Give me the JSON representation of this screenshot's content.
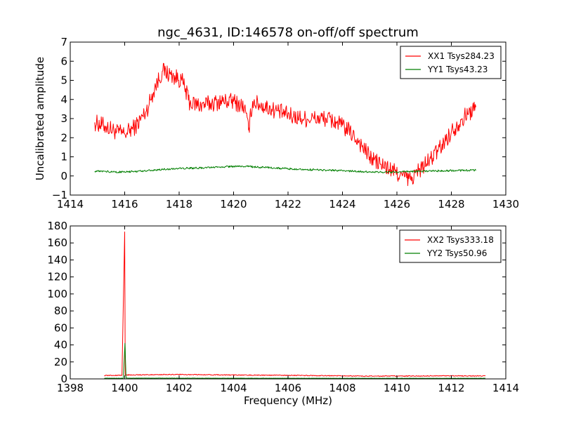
{
  "chart_data": [
    {
      "type": "line",
      "title": "ngc_4631, ID:146578 on-off/off spectrum",
      "xlabel": "",
      "ylabel": "Uncalibrated amplitude",
      "xlim": [
        1414,
        1430
      ],
      "ylim": [
        -1,
        7
      ],
      "xticks": [
        1414,
        1416,
        1418,
        1420,
        1422,
        1424,
        1426,
        1428,
        1430
      ],
      "yticks": [
        -1,
        0,
        1,
        2,
        3,
        4,
        5,
        6,
        7
      ],
      "xtick_labels": [
        "1414",
        "1416",
        "1418",
        "1420",
        "1422",
        "1424",
        "1426",
        "1428",
        "1430"
      ],
      "ytick_labels": [
        "−1",
        "0",
        "1",
        "2",
        "3",
        "4",
        "5",
        "6",
        "7"
      ],
      "legend_position": "top-right",
      "series": [
        {
          "name": "XX1 Tsys284.23",
          "color": "#ff0000",
          "noise": 0.45,
          "x": [
            1414.9,
            1415.3,
            1415.7,
            1416.0,
            1416.4,
            1416.8,
            1417.1,
            1417.4,
            1417.8,
            1418.1,
            1418.4,
            1418.8,
            1419.2,
            1419.6,
            1420.0,
            1420.4,
            1420.55,
            1420.7,
            1421.0,
            1421.4,
            1421.8,
            1422.2,
            1422.6,
            1423.0,
            1423.4,
            1423.8,
            1424.2,
            1424.6,
            1425.0,
            1425.4,
            1425.8,
            1426.2,
            1426.5,
            1426.8,
            1427.2,
            1427.6,
            1428.0,
            1428.4,
            1428.9
          ],
          "values": [
            2.8,
            2.6,
            2.3,
            2.2,
            2.6,
            3.4,
            4.6,
            5.5,
            5.2,
            5.0,
            3.8,
            3.7,
            3.8,
            3.9,
            3.9,
            3.6,
            2.4,
            3.9,
            3.7,
            3.5,
            3.3,
            3.1,
            3.0,
            3.0,
            3.0,
            2.8,
            2.4,
            1.8,
            1.0,
            0.6,
            0.3,
            0.0,
            -0.2,
            0.3,
            0.8,
            1.5,
            2.3,
            3.0,
            3.6
          ]
        },
        {
          "name": "YY1 Tsys43.23",
          "color": "#007f00",
          "noise": 0.05,
          "x": [
            1414.9,
            1416.0,
            1417.0,
            1418.0,
            1419.0,
            1420.0,
            1420.5,
            1421.0,
            1422.0,
            1423.0,
            1424.0,
            1425.0,
            1426.0,
            1427.0,
            1428.0,
            1428.9
          ],
          "values": [
            0.25,
            0.2,
            0.3,
            0.4,
            0.42,
            0.5,
            0.5,
            0.45,
            0.38,
            0.32,
            0.28,
            0.2,
            0.2,
            0.25,
            0.28,
            0.3
          ]
        }
      ]
    },
    {
      "type": "line",
      "title": "",
      "xlabel": "Frequency (MHz)",
      "ylabel": "",
      "xlim": [
        1398,
        1414
      ],
      "ylim": [
        0,
        180
      ],
      "xticks": [
        1398,
        1400,
        1402,
        1404,
        1406,
        1408,
        1410,
        1412,
        1414
      ],
      "yticks": [
        0,
        20,
        40,
        60,
        80,
        100,
        120,
        140,
        160,
        180
      ],
      "xtick_labels": [
        "1398",
        "1400",
        "1402",
        "1404",
        "1406",
        "1408",
        "1410",
        "1412",
        "1414"
      ],
      "ytick_labels": [
        "0",
        "20",
        "40",
        "60",
        "80",
        "100",
        "120",
        "140",
        "160",
        "180"
      ],
      "legend_position": "top-right",
      "series": [
        {
          "name": "XX2 Tsys333.18",
          "color": "#ff0000",
          "noise": 0.5,
          "x": [
            1399.25,
            1399.9,
            1400.0,
            1400.02,
            1400.06,
            1401.0,
            1402.0,
            1404.0,
            1406.0,
            1408.0,
            1409.0,
            1410.0,
            1412.0,
            1413.25
          ],
          "values": [
            4.0,
            4.2,
            173.0,
            4.5,
            4.6,
            5.0,
            5.2,
            4.6,
            4.2,
            3.6,
            3.2,
            3.4,
            3.6,
            3.4
          ]
        },
        {
          "name": "YY2 Tsys50.96",
          "color": "#007f00",
          "noise": 0.15,
          "x": [
            1399.25,
            1399.95,
            1400.01,
            1400.05,
            1401.0,
            1404.0,
            1408.0,
            1413.25
          ],
          "values": [
            0.8,
            0.8,
            42.0,
            0.9,
            0.9,
            0.8,
            0.7,
            0.7
          ]
        }
      ]
    }
  ]
}
